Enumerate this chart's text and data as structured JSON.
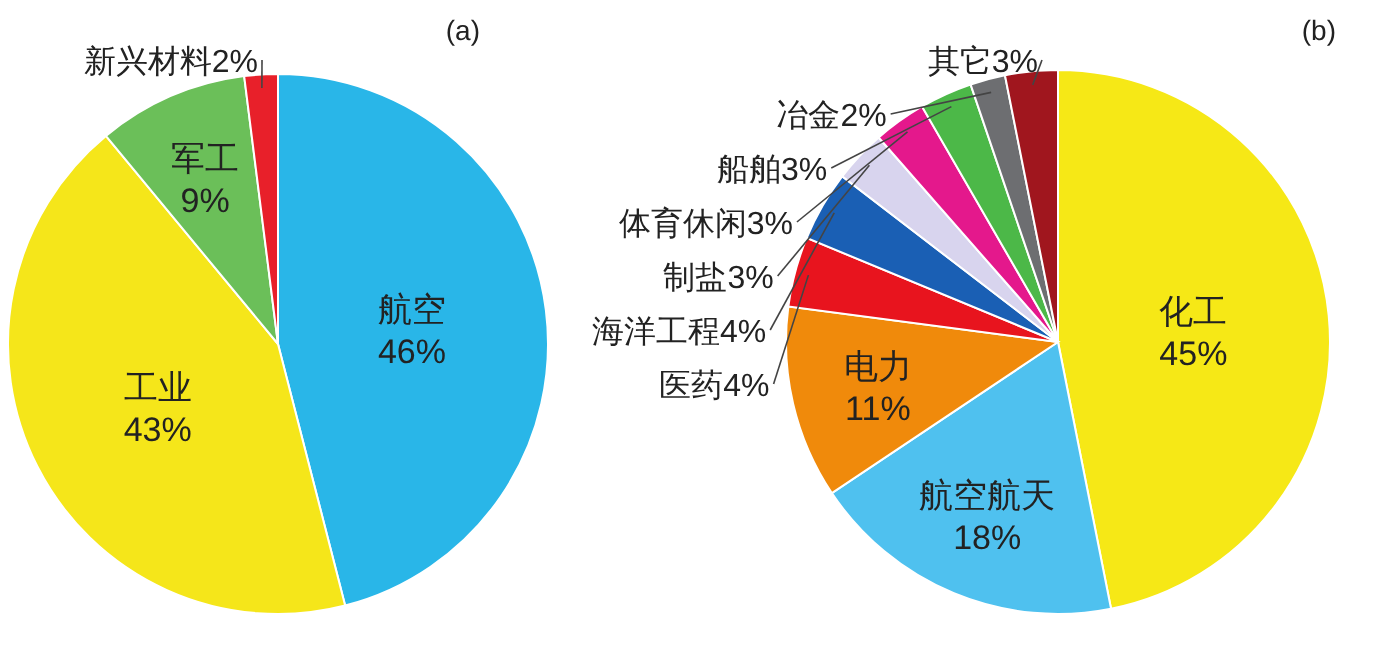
{
  "chart_data": [
    {
      "type": "pie",
      "title": "(a)",
      "categories": [
        "航空",
        "工业",
        "军工",
        "新兴材料"
      ],
      "values": [
        46,
        43,
        9,
        2
      ],
      "colors": [
        "#29b6e8",
        "#f5e61a",
        "#6bbf59",
        "#e8202a"
      ],
      "value_labels": [
        "46%",
        "43%",
        "9%",
        "2%"
      ]
    },
    {
      "type": "pie",
      "title": "(b)",
      "categories": [
        "化工",
        "航空航天",
        "电力",
        "医药",
        "海洋工程",
        "制盐",
        "体育休闲",
        "船舶",
        "冶金",
        "其它"
      ],
      "values": [
        45,
        18,
        11,
        4,
        4,
        3,
        3,
        3,
        2,
        3
      ],
      "colors": [
        "#f6e816",
        "#4fc1ef",
        "#f08a0b",
        "#e8141e",
        "#1a5fb4",
        "#d8d4ee",
        "#e4188c",
        "#4cb848",
        "#6d6e71",
        "#a0161e"
      ],
      "value_labels": [
        "45%",
        "18%",
        "11%",
        "4%",
        "4%",
        "3%",
        "3%",
        "3%",
        "2%",
        "3%"
      ]
    }
  ]
}
